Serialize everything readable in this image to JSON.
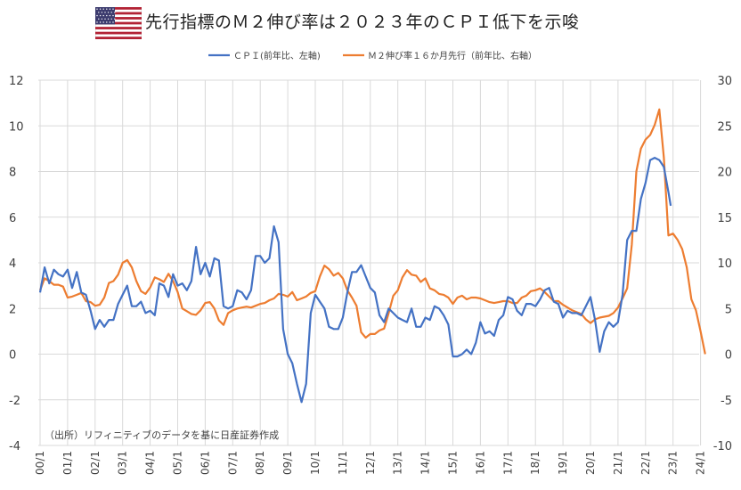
{
  "header": {
    "title": "先行指標のＭ２伸び率は２０２３年のＣＰＩ低下を示唆",
    "flag_icon": "us-flag-icon"
  },
  "source_note": "（出所）リフィニティブのデータを基に日産証券作成",
  "colors": {
    "cpi": "#4472C4",
    "m2": "#ED7D31",
    "grid": "#D9D9D9",
    "axis_text": "#404040"
  },
  "chart_data": {
    "type": "line",
    "legend_position": "top",
    "grid": true,
    "x_ticks": [
      "00/1",
      "01/1",
      "02/1",
      "03/1",
      "04/1",
      "05/1",
      "06/1",
      "07/1",
      "08/1",
      "09/1",
      "10/1",
      "11/1",
      "12/1",
      "13/1",
      "14/1",
      "15/1",
      "16/1",
      "17/1",
      "18/1",
      "19/1",
      "20/1",
      "21/1",
      "22/1",
      "23/1",
      "24/1"
    ],
    "y_left": {
      "ylim": [
        -4,
        12
      ],
      "ticks": [
        "-4",
        "-2",
        "0",
        "2",
        "4",
        "6",
        "8",
        "10",
        "12"
      ]
    },
    "y_right": {
      "ylim": [
        -10,
        30
      ],
      "ticks": [
        "-10",
        "-5",
        "0",
        "5",
        "10",
        "15",
        "20",
        "25",
        "30"
      ]
    },
    "series": [
      {
        "name": "ＣＰＩ(前年比、左軸)",
        "axis": "left",
        "points": [
          [
            "2000-01",
            2.7
          ],
          [
            "2000-03",
            3.8
          ],
          [
            "2000-05",
            3.1
          ],
          [
            "2000-07",
            3.7
          ],
          [
            "2000-09",
            3.5
          ],
          [
            "2000-11",
            3.4
          ],
          [
            "2001-01",
            3.7
          ],
          [
            "2001-03",
            2.9
          ],
          [
            "2001-05",
            3.6
          ],
          [
            "2001-07",
            2.7
          ],
          [
            "2001-09",
            2.6
          ],
          [
            "2001-11",
            1.9
          ],
          [
            "2002-01",
            1.1
          ],
          [
            "2002-03",
            1.5
          ],
          [
            "2002-05",
            1.2
          ],
          [
            "2002-07",
            1.5
          ],
          [
            "2002-09",
            1.5
          ],
          [
            "2002-11",
            2.2
          ],
          [
            "2003-01",
            2.6
          ],
          [
            "2003-03",
            3.0
          ],
          [
            "2003-05",
            2.1
          ],
          [
            "2003-07",
            2.1
          ],
          [
            "2003-09",
            2.3
          ],
          [
            "2003-11",
            1.8
          ],
          [
            "2004-01",
            1.9
          ],
          [
            "2004-03",
            1.7
          ],
          [
            "2004-05",
            3.1
          ],
          [
            "2004-07",
            3.0
          ],
          [
            "2004-09",
            2.5
          ],
          [
            "2004-11",
            3.5
          ],
          [
            "2005-01",
            3.0
          ],
          [
            "2005-03",
            3.1
          ],
          [
            "2005-05",
            2.8
          ],
          [
            "2005-07",
            3.2
          ],
          [
            "2005-09",
            4.7
          ],
          [
            "2005-11",
            3.5
          ],
          [
            "2006-01",
            4.0
          ],
          [
            "2006-03",
            3.4
          ],
          [
            "2006-05",
            4.2
          ],
          [
            "2006-07",
            4.1
          ],
          [
            "2006-09",
            2.1
          ],
          [
            "2006-11",
            2.0
          ],
          [
            "2007-01",
            2.1
          ],
          [
            "2007-03",
            2.8
          ],
          [
            "2007-05",
            2.7
          ],
          [
            "2007-07",
            2.4
          ],
          [
            "2007-09",
            2.8
          ],
          [
            "2007-11",
            4.3
          ],
          [
            "2008-01",
            4.3
          ],
          [
            "2008-03",
            4.0
          ],
          [
            "2008-05",
            4.2
          ],
          [
            "2008-07",
            5.6
          ],
          [
            "2008-09",
            4.9
          ],
          [
            "2008-11",
            1.1
          ],
          [
            "2009-01",
            0.0
          ],
          [
            "2009-03",
            -0.4
          ],
          [
            "2009-05",
            -1.3
          ],
          [
            "2009-07",
            -2.1
          ],
          [
            "2009-09",
            -1.3
          ],
          [
            "2009-11",
            1.8
          ],
          [
            "2010-01",
            2.6
          ],
          [
            "2010-03",
            2.3
          ],
          [
            "2010-05",
            2.0
          ],
          [
            "2010-07",
            1.2
          ],
          [
            "2010-09",
            1.1
          ],
          [
            "2010-11",
            1.1
          ],
          [
            "2011-01",
            1.6
          ],
          [
            "2011-03",
            2.7
          ],
          [
            "2011-05",
            3.6
          ],
          [
            "2011-07",
            3.6
          ],
          [
            "2011-09",
            3.9
          ],
          [
            "2011-11",
            3.4
          ],
          [
            "2012-01",
            2.9
          ],
          [
            "2012-03",
            2.7
          ],
          [
            "2012-05",
            1.7
          ],
          [
            "2012-07",
            1.4
          ],
          [
            "2012-09",
            2.0
          ],
          [
            "2012-11",
            1.8
          ],
          [
            "2013-01",
            1.6
          ],
          [
            "2013-03",
            1.5
          ],
          [
            "2013-05",
            1.4
          ],
          [
            "2013-07",
            2.0
          ],
          [
            "2013-09",
            1.2
          ],
          [
            "2013-11",
            1.2
          ],
          [
            "2014-01",
            1.6
          ],
          [
            "2014-03",
            1.5
          ],
          [
            "2014-05",
            2.1
          ],
          [
            "2014-07",
            2.0
          ],
          [
            "2014-09",
            1.7
          ],
          [
            "2014-11",
            1.3
          ],
          [
            "2015-01",
            -0.1
          ],
          [
            "2015-03",
            -0.1
          ],
          [
            "2015-05",
            0.0
          ],
          [
            "2015-07",
            0.2
          ],
          [
            "2015-09",
            0.0
          ],
          [
            "2015-11",
            0.5
          ],
          [
            "2016-01",
            1.4
          ],
          [
            "2016-03",
            0.9
          ],
          [
            "2016-05",
            1.0
          ],
          [
            "2016-07",
            0.8
          ],
          [
            "2016-09",
            1.5
          ],
          [
            "2016-11",
            1.7
          ],
          [
            "2017-01",
            2.5
          ],
          [
            "2017-03",
            2.4
          ],
          [
            "2017-05",
            1.9
          ],
          [
            "2017-07",
            1.7
          ],
          [
            "2017-09",
            2.2
          ],
          [
            "2017-11",
            2.2
          ],
          [
            "2018-01",
            2.1
          ],
          [
            "2018-03",
            2.4
          ],
          [
            "2018-05",
            2.8
          ],
          [
            "2018-07",
            2.9
          ],
          [
            "2018-09",
            2.3
          ],
          [
            "2018-11",
            2.2
          ],
          [
            "2019-01",
            1.6
          ],
          [
            "2019-03",
            1.9
          ],
          [
            "2019-05",
            1.8
          ],
          [
            "2019-07",
            1.8
          ],
          [
            "2019-09",
            1.7
          ],
          [
            "2019-11",
            2.1
          ],
          [
            "2020-01",
            2.5
          ],
          [
            "2020-03",
            1.5
          ],
          [
            "2020-05",
            0.1
          ],
          [
            "2020-07",
            1.0
          ],
          [
            "2020-09",
            1.4
          ],
          [
            "2020-11",
            1.2
          ],
          [
            "2021-01",
            1.4
          ],
          [
            "2021-03",
            2.6
          ],
          [
            "2021-05",
            5.0
          ],
          [
            "2021-07",
            5.4
          ],
          [
            "2021-09",
            5.4
          ],
          [
            "2021-11",
            6.8
          ],
          [
            "2022-01",
            7.5
          ],
          [
            "2022-03",
            8.5
          ],
          [
            "2022-05",
            8.6
          ],
          [
            "2022-07",
            8.5
          ],
          [
            "2022-09",
            8.2
          ],
          [
            "2022-11",
            7.1
          ],
          [
            "2022-12",
            6.5
          ]
        ]
      },
      {
        "name": "Ｍ２伸び率１６か月先行（前年比、右軸）",
        "axis": "right",
        "points": [
          [
            "2000-01",
            7.0
          ],
          [
            "2000-03",
            8.3
          ],
          [
            "2000-05",
            8.0
          ],
          [
            "2000-07",
            7.6
          ],
          [
            "2000-09",
            7.6
          ],
          [
            "2000-11",
            7.4
          ],
          [
            "2001-01",
            6.2
          ],
          [
            "2001-03",
            6.3
          ],
          [
            "2001-05",
            6.5
          ],
          [
            "2001-07",
            6.7
          ],
          [
            "2001-09",
            5.8
          ],
          [
            "2001-11",
            5.7
          ],
          [
            "2002-01",
            5.3
          ],
          [
            "2002-03",
            5.4
          ],
          [
            "2002-05",
            6.2
          ],
          [
            "2002-07",
            7.8
          ],
          [
            "2002-09",
            8.0
          ],
          [
            "2002-11",
            8.7
          ],
          [
            "2003-01",
            10.0
          ],
          [
            "2003-03",
            10.3
          ],
          [
            "2003-05",
            9.5
          ],
          [
            "2003-07",
            8.0
          ],
          [
            "2003-09",
            6.9
          ],
          [
            "2003-11",
            6.6
          ],
          [
            "2004-01",
            7.3
          ],
          [
            "2004-03",
            8.4
          ],
          [
            "2004-05",
            8.2
          ],
          [
            "2004-07",
            7.9
          ],
          [
            "2004-09",
            8.8
          ],
          [
            "2004-11",
            8.0
          ],
          [
            "2005-01",
            6.8
          ],
          [
            "2005-03",
            5.0
          ],
          [
            "2005-05",
            4.7
          ],
          [
            "2005-07",
            4.4
          ],
          [
            "2005-09",
            4.3
          ],
          [
            "2005-11",
            4.8
          ],
          [
            "2006-01",
            5.6
          ],
          [
            "2006-03",
            5.7
          ],
          [
            "2006-05",
            5.0
          ],
          [
            "2006-07",
            3.7
          ],
          [
            "2006-09",
            3.2
          ],
          [
            "2006-11",
            4.5
          ],
          [
            "2007-01",
            4.8
          ],
          [
            "2007-03",
            5.0
          ],
          [
            "2007-05",
            5.1
          ],
          [
            "2007-07",
            5.2
          ],
          [
            "2007-09",
            5.1
          ],
          [
            "2007-11",
            5.3
          ],
          [
            "2008-01",
            5.5
          ],
          [
            "2008-03",
            5.6
          ],
          [
            "2008-05",
            5.9
          ],
          [
            "2008-07",
            6.1
          ],
          [
            "2008-09",
            6.6
          ],
          [
            "2008-11",
            6.5
          ],
          [
            "2009-01",
            6.3
          ],
          [
            "2009-03",
            6.8
          ],
          [
            "2009-05",
            5.9
          ],
          [
            "2009-07",
            6.1
          ],
          [
            "2009-09",
            6.3
          ],
          [
            "2009-11",
            6.7
          ],
          [
            "2010-01",
            6.9
          ],
          [
            "2010-03",
            8.5
          ],
          [
            "2010-05",
            9.7
          ],
          [
            "2010-07",
            9.3
          ],
          [
            "2010-09",
            8.6
          ],
          [
            "2010-11",
            8.9
          ],
          [
            "2011-01",
            8.3
          ],
          [
            "2011-03",
            7.0
          ],
          [
            "2011-05",
            6.2
          ],
          [
            "2011-07",
            5.3
          ],
          [
            "2011-09",
            2.4
          ],
          [
            "2011-11",
            1.8
          ],
          [
            "2012-01",
            2.2
          ],
          [
            "2012-03",
            2.2
          ],
          [
            "2012-05",
            2.6
          ],
          [
            "2012-07",
            2.8
          ],
          [
            "2012-09",
            4.5
          ],
          [
            "2012-11",
            6.4
          ],
          [
            "2013-01",
            7.0
          ],
          [
            "2013-03",
            8.4
          ],
          [
            "2013-05",
            9.2
          ],
          [
            "2013-07",
            8.7
          ],
          [
            "2013-09",
            8.6
          ],
          [
            "2013-11",
            7.9
          ],
          [
            "2014-01",
            8.3
          ],
          [
            "2014-03",
            7.2
          ],
          [
            "2014-05",
            7.0
          ],
          [
            "2014-07",
            6.6
          ],
          [
            "2014-09",
            6.5
          ],
          [
            "2014-11",
            6.2
          ],
          [
            "2015-01",
            5.5
          ],
          [
            "2015-03",
            6.2
          ],
          [
            "2015-05",
            6.4
          ],
          [
            "2015-07",
            6.0
          ],
          [
            "2015-09",
            6.2
          ],
          [
            "2015-11",
            6.2
          ],
          [
            "2016-01",
            6.1
          ],
          [
            "2016-03",
            5.9
          ],
          [
            "2016-05",
            5.7
          ],
          [
            "2016-07",
            5.6
          ],
          [
            "2016-09",
            5.7
          ],
          [
            "2016-11",
            5.8
          ],
          [
            "2017-01",
            5.8
          ],
          [
            "2017-03",
            5.6
          ],
          [
            "2017-05",
            5.6
          ],
          [
            "2017-07",
            6.2
          ],
          [
            "2017-09",
            6.4
          ],
          [
            "2017-11",
            6.9
          ],
          [
            "2018-01",
            7.0
          ],
          [
            "2018-03",
            7.2
          ],
          [
            "2018-05",
            6.8
          ],
          [
            "2018-07",
            6.3
          ],
          [
            "2018-09",
            5.8
          ],
          [
            "2018-11",
            5.8
          ],
          [
            "2019-01",
            5.4
          ],
          [
            "2019-03",
            5.1
          ],
          [
            "2019-05",
            4.8
          ],
          [
            "2019-07",
            4.6
          ],
          [
            "2019-09",
            4.4
          ],
          [
            "2019-11",
            3.8
          ],
          [
            "2020-01",
            3.4
          ],
          [
            "2020-03",
            3.8
          ],
          [
            "2020-05",
            4.0
          ],
          [
            "2020-07",
            4.1
          ],
          [
            "2020-09",
            4.2
          ],
          [
            "2020-11",
            4.5
          ],
          [
            "2021-01",
            5.1
          ],
          [
            "2021-03",
            6.1
          ],
          [
            "2021-05",
            7.2
          ],
          [
            "2021-07",
            12.0
          ],
          [
            "2021-09",
            20.0
          ],
          [
            "2021-11",
            22.5
          ],
          [
            "2022-01",
            23.5
          ],
          [
            "2022-03",
            24.0
          ],
          [
            "2022-05",
            25.1
          ],
          [
            "2022-07",
            26.8
          ],
          [
            "2022-09",
            21.5
          ],
          [
            "2022-11",
            13.0
          ],
          [
            "2023-01",
            13.2
          ],
          [
            "2023-03",
            12.5
          ],
          [
            "2023-05",
            11.5
          ],
          [
            "2023-07",
            9.5
          ],
          [
            "2023-09",
            6.0
          ],
          [
            "2023-11",
            4.8
          ],
          [
            "2024-01",
            2.5
          ],
          [
            "2024-03",
            0.0
          ]
        ]
      }
    ]
  }
}
